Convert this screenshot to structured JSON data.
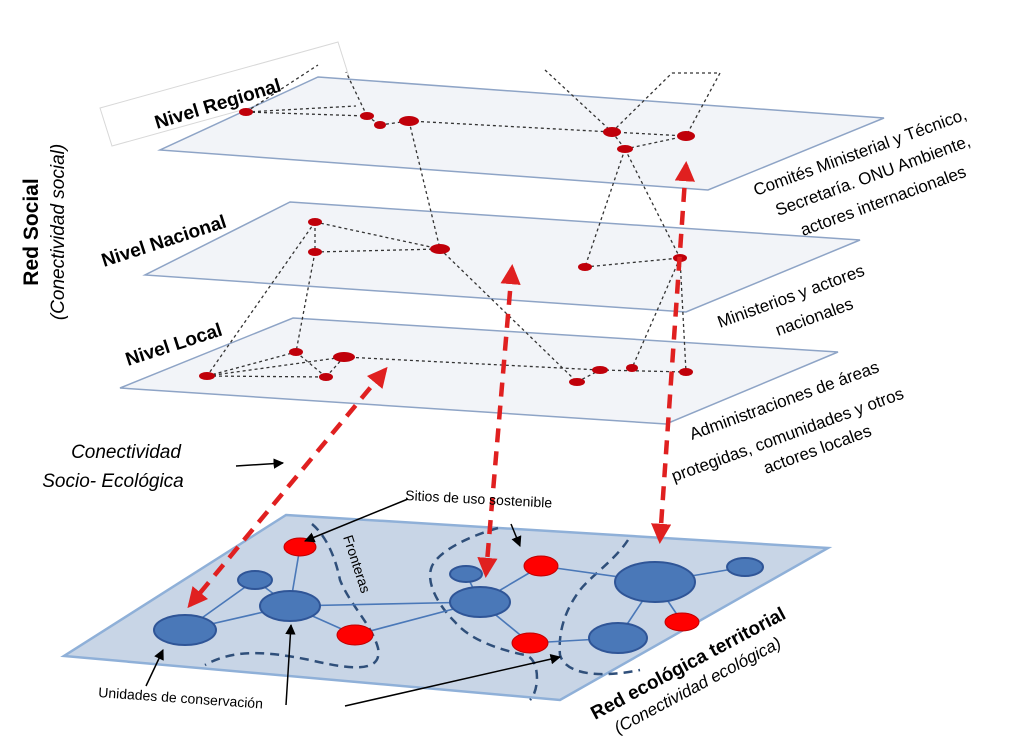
{
  "social": {
    "title": "Red Social",
    "subtitle": "(Conectividad social)",
    "levels": [
      {
        "name": "Nivel Regional",
        "actors": [
          "Comités Ministerial y Técnico,",
          "Secretaría. ONU Ambiente,",
          "actores internacionales"
        ]
      },
      {
        "name": "Nivel Nacional",
        "actors": [
          "Ministerios y actores",
          "nacionales"
        ]
      },
      {
        "name": "Nivel Local",
        "actors": [
          "Administraciones de áreas",
          "protegidas, comunidades y otros",
          "actores locales"
        ]
      }
    ]
  },
  "connectivity": {
    "line1": "Conectividad",
    "line2": "Socio- Ecológica"
  },
  "eco": {
    "title": "Red ecológica territorial",
    "subtitle": "(Conectividad ecológica)",
    "sustainable_sites": "Sitios de uso sostenible",
    "borders": "Fronteras",
    "conservation_units": "Unidades de conservación"
  },
  "colors": {
    "plane_fill": "#f2f4f8",
    "plane_stroke": "#8ea4c6",
    "eco_fill": "#c8d5e6",
    "eco_stroke": "#8fb0d8",
    "social_node": "#c0000a",
    "unit_fill": "#4a78b8",
    "unit_stroke": "#2f5597",
    "site_fill": "#ff0000",
    "arrow": "#e02020",
    "border_line": "#2f4f7a"
  }
}
